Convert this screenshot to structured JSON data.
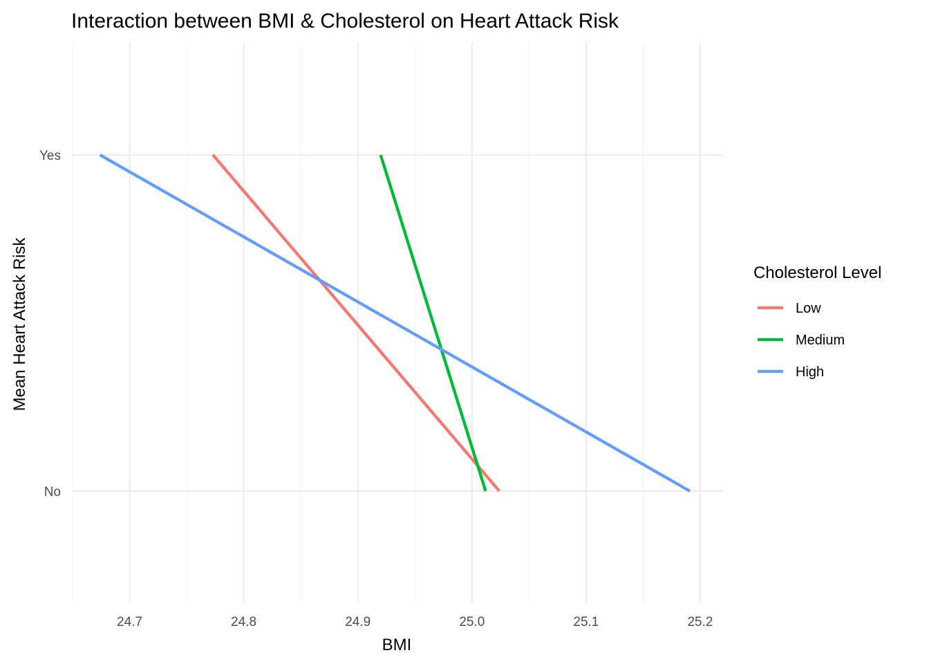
{
  "chart_data": {
    "type": "line",
    "title": "Interaction between BMI & Cholesterol on Heart Attack Risk",
    "xlabel": "BMI",
    "ylabel": "Mean Heart Attack Risk",
    "xlim": [
      24.65,
      25.22
    ],
    "ylim": [
      0.0,
      1.0
    ],
    "x_ticks": [
      24.7,
      24.8,
      24.9,
      25.0,
      25.1,
      25.2
    ],
    "x_tick_labels": [
      "24.7",
      "24.8",
      "24.9",
      "25.0",
      "25.1",
      "25.2"
    ],
    "y_categories": [
      "No",
      "Yes"
    ],
    "y_category_values": [
      0.2,
      0.8
    ],
    "grid": true,
    "legend": {
      "title": "Cholesterol Level",
      "placement": "right"
    },
    "series": [
      {
        "name": "Low",
        "color": "#F8766D",
        "x": [
          24.773,
          25.024
        ],
        "y": [
          "Yes",
          "No"
        ]
      },
      {
        "name": "Medium",
        "color": "#00BA38",
        "x": [
          24.92,
          25.012
        ],
        "y": [
          "Yes",
          "No"
        ]
      },
      {
        "name": "High",
        "color": "#619CFF",
        "x": [
          24.674,
          25.191
        ],
        "y": [
          "Yes",
          "No"
        ]
      }
    ]
  }
}
